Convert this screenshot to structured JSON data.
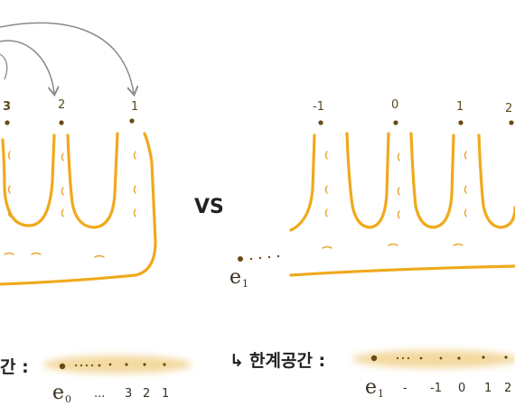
{
  "left_figure": {
    "labels": [
      "3",
      "2",
      "1"
    ]
  },
  "vs_text": "VS",
  "right_figure": {
    "labels": [
      "-1",
      "0",
      "1",
      "2"
    ],
    "endpoint": {
      "letter": "e",
      "subscript": "1"
    }
  },
  "left_strip": {
    "title": "간 :",
    "endpoint": {
      "letter": "e",
      "subscript": "0"
    },
    "axis_labels": [
      "...",
      "3",
      "2",
      "1"
    ]
  },
  "right_strip": {
    "arrow": "↳",
    "title": "한계공간 :",
    "endpoint": {
      "letter": "e",
      "subscript": "1"
    },
    "axis_labels": [
      "-",
      "-1",
      "0",
      "1",
      "2"
    ]
  },
  "colors": {
    "curve": "#f0a91c",
    "leaf_mark": "#e8a533",
    "dot": "#6b4a12",
    "arrow": "#8a8a8a",
    "strip": "#f3d9a0"
  }
}
